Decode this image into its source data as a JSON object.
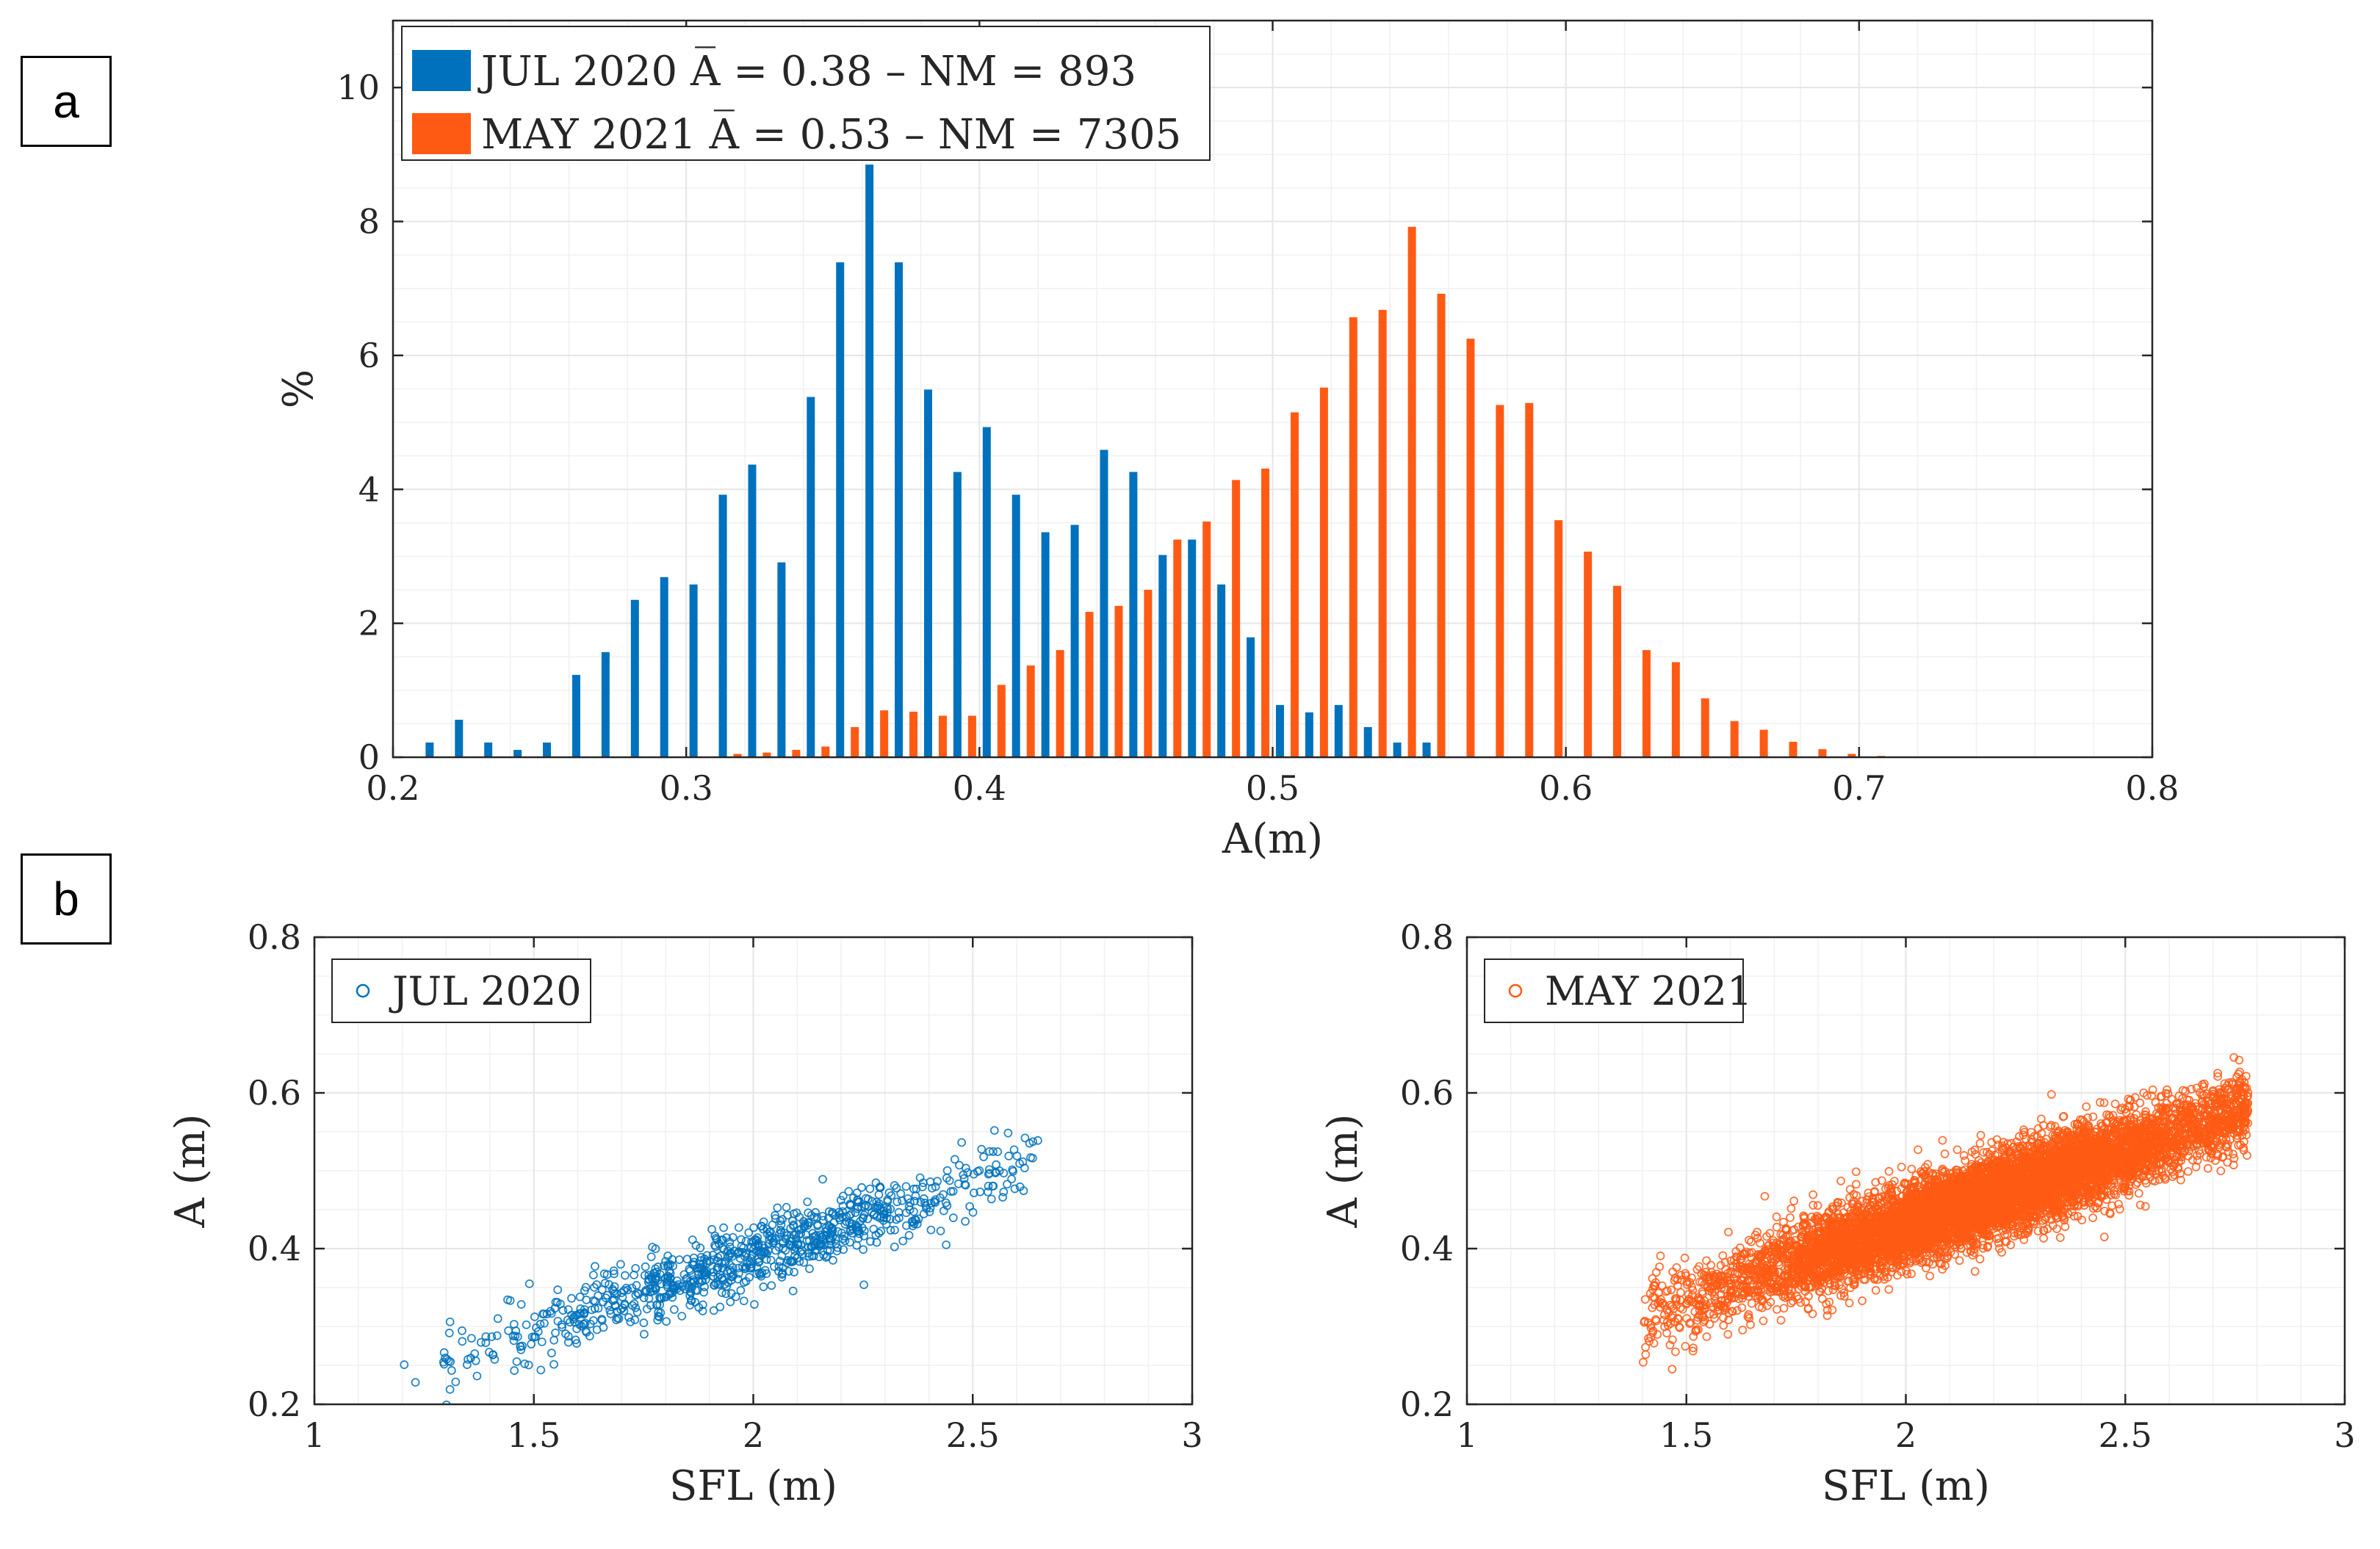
{
  "panel_labels": {
    "a": "a",
    "b": "b"
  },
  "colors": {
    "jul": "#0072BD",
    "may": "#FF5A14",
    "grid": "#e6e6e6",
    "axis": "#262626"
  },
  "chart_data": [
    {
      "id": "a",
      "type": "bar",
      "xlabel": "A(m)",
      "ylabel": "%",
      "xlim": [
        0.2,
        0.8
      ],
      "ylim": [
        0,
        11
      ],
      "xticks": [
        0.2,
        0.3,
        0.4,
        0.5,
        0.6,
        0.7,
        0.8
      ],
      "xtick_labels": [
        "0.2",
        "0.3",
        "0.4",
        "0.5",
        "0.6",
        "0.7",
        "0.8"
      ],
      "yticks": [
        0,
        2,
        4,
        6,
        8,
        10
      ],
      "ytick_labels": [
        "0",
        "2",
        "4",
        "6",
        "8",
        "10"
      ],
      "grid": true,
      "legend_position": "top-left",
      "categories": [
        0.215,
        0.225,
        0.235,
        0.245,
        0.255,
        0.265,
        0.275,
        0.285,
        0.295,
        0.305,
        0.315,
        0.325,
        0.335,
        0.345,
        0.355,
        0.365,
        0.375,
        0.385,
        0.395,
        0.405,
        0.415,
        0.425,
        0.435,
        0.445,
        0.455,
        0.465,
        0.475,
        0.485,
        0.495,
        0.505,
        0.515,
        0.525,
        0.535,
        0.545,
        0.555,
        0.565,
        0.575,
        0.585,
        0.595,
        0.605,
        0.615,
        0.625,
        0.635,
        0.645,
        0.655,
        0.665,
        0.675,
        0.685,
        0.695,
        0.705
      ],
      "series": [
        {
          "name": "JUL 2020",
          "legend": "JUL 2020 A̅ = 0.38 – NM = 893",
          "color": "#0072BD",
          "values": [
            0.22,
            0.56,
            0.22,
            0.11,
            0.22,
            1.23,
            1.57,
            2.35,
            2.69,
            2.58,
            3.92,
            4.37,
            2.91,
            5.38,
            7.39,
            8.85,
            7.39,
            5.49,
            4.26,
            4.93,
            3.92,
            3.36,
            3.47,
            4.59,
            4.26,
            3.02,
            3.25,
            2.58,
            1.79,
            0.78,
            0.67,
            0.78,
            0.45,
            0.22,
            0.22,
            0,
            0,
            0,
            0,
            0,
            0,
            0,
            0,
            0,
            0,
            0,
            0,
            0,
            0,
            0
          ]
        },
        {
          "name": "MAY 2021",
          "legend": "MAY 2021 A̅ = 0.53 – NM = 7305",
          "color": "#FF5A14",
          "values": [
            0,
            0,
            0,
            0,
            0,
            0,
            0,
            0,
            0,
            0,
            0.05,
            0.07,
            0.11,
            0.16,
            0.45,
            0.7,
            0.68,
            0.62,
            0.62,
            1.08,
            1.37,
            1.6,
            2.17,
            2.26,
            2.5,
            3.25,
            3.52,
            4.14,
            4.31,
            5.15,
            5.52,
            6.57,
            6.68,
            7.92,
            6.92,
            6.25,
            5.26,
            5.29,
            3.54,
            3.07,
            2.56,
            1.6,
            1.42,
            0.88,
            0.54,
            0.41,
            0.23,
            0.12,
            0.05,
            0.02
          ]
        }
      ]
    },
    {
      "id": "b1",
      "type": "scatter",
      "xlabel": "SFL (m)",
      "ylabel": "A (m)",
      "xlim": [
        1,
        3
      ],
      "ylim": [
        0.2,
        0.8
      ],
      "xticks": [
        1,
        1.5,
        2,
        2.5,
        3
      ],
      "xtick_labels": [
        "1",
        "1.5",
        "2",
        "2.5",
        "3"
      ],
      "yticks": [
        0.2,
        0.4,
        0.6,
        0.8
      ],
      "ytick_labels": [
        "0.2",
        "0.4",
        "0.6",
        "0.8"
      ],
      "grid": true,
      "legend_position": "top-left",
      "series": [
        {
          "name": "JUL 2020",
          "color": "#0072BD",
          "n_points": 893,
          "trend": {
            "slope": 0.19,
            "intercept": 0.01,
            "spread": 0.022
          },
          "x_range": [
            1.2,
            2.65
          ]
        }
      ]
    },
    {
      "id": "b2",
      "type": "scatter",
      "xlabel": "SFL (m)",
      "ylabel": "A (m)",
      "xlim": [
        1,
        3
      ],
      "ylim": [
        0.2,
        0.8
      ],
      "xticks": [
        1,
        1.5,
        2,
        2.5,
        3
      ],
      "xtick_labels": [
        "1",
        "1.5",
        "2",
        "2.5",
        "3"
      ],
      "yticks": [
        0.2,
        0.4,
        0.6,
        0.8
      ],
      "ytick_labels": [
        "0.2",
        "0.4",
        "0.6",
        "0.8"
      ],
      "grid": true,
      "legend_position": "top-left",
      "series": [
        {
          "name": "MAY 2021",
          "color": "#FF5A14",
          "n_points": 7305,
          "trend": {
            "slope": 0.19,
            "intercept": 0.05,
            "spread": 0.026
          },
          "x_range": [
            1.4,
            2.78
          ]
        }
      ]
    }
  ]
}
